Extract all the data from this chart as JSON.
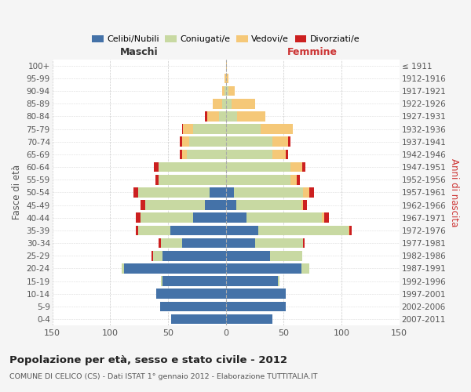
{
  "age_groups": [
    "0-4",
    "5-9",
    "10-14",
    "15-19",
    "20-24",
    "25-29",
    "30-34",
    "35-39",
    "40-44",
    "45-49",
    "50-54",
    "55-59",
    "60-64",
    "65-69",
    "70-74",
    "75-79",
    "80-84",
    "85-89",
    "90-94",
    "95-99",
    "100+"
  ],
  "birth_years": [
    "2007-2011",
    "2002-2006",
    "1997-2001",
    "1992-1996",
    "1987-1991",
    "1982-1986",
    "1977-1981",
    "1972-1976",
    "1967-1971",
    "1962-1966",
    "1957-1961",
    "1952-1956",
    "1947-1951",
    "1942-1946",
    "1937-1941",
    "1932-1936",
    "1927-1931",
    "1922-1926",
    "1917-1921",
    "1912-1916",
    "≤ 1911"
  ],
  "maschi": {
    "celibi": [
      47,
      57,
      60,
      55,
      88,
      55,
      38,
      48,
      28,
      18,
      14,
      0,
      0,
      0,
      0,
      0,
      0,
      0,
      0,
      0,
      0
    ],
    "coniugati": [
      0,
      0,
      0,
      1,
      2,
      8,
      18,
      28,
      46,
      52,
      62,
      58,
      58,
      34,
      32,
      28,
      6,
      3,
      1,
      0,
      0
    ],
    "vedovi": [
      0,
      0,
      0,
      0,
      0,
      0,
      0,
      0,
      0,
      0,
      0,
      0,
      0,
      4,
      6,
      9,
      10,
      8,
      2,
      1,
      0
    ],
    "divorziati": [
      0,
      0,
      0,
      0,
      0,
      1,
      2,
      2,
      4,
      4,
      4,
      3,
      4,
      2,
      2,
      1,
      2,
      0,
      0,
      0,
      0
    ]
  },
  "femmine": {
    "nubili": [
      40,
      52,
      52,
      45,
      65,
      38,
      25,
      28,
      18,
      9,
      7,
      0,
      0,
      0,
      0,
      0,
      0,
      0,
      0,
      0,
      0
    ],
    "coniugate": [
      0,
      0,
      0,
      1,
      7,
      28,
      42,
      78,
      65,
      56,
      60,
      56,
      56,
      40,
      40,
      30,
      10,
      5,
      2,
      0,
      0
    ],
    "vedove": [
      0,
      0,
      0,
      0,
      0,
      0,
      0,
      1,
      2,
      2,
      5,
      5,
      10,
      12,
      14,
      28,
      24,
      20,
      6,
      2,
      1
    ],
    "divorziate": [
      0,
      0,
      0,
      0,
      0,
      0,
      1,
      2,
      4,
      3,
      4,
      3,
      3,
      2,
      2,
      0,
      0,
      0,
      0,
      0,
      0
    ]
  },
  "colors": {
    "celibi": "#4472a8",
    "coniugati": "#c8d9a2",
    "vedovi": "#f5c878",
    "divorziati": "#cc2020"
  },
  "xlim": 150,
  "title": "Popolazione per età, sesso e stato civile - 2012",
  "subtitle": "COMUNE DI CELICO (CS) - Dati ISTAT 1° gennaio 2012 - Elaborazione TUTTITALIA.IT",
  "ylabel_left": "Fasce di età",
  "ylabel_right": "Anni di nascita",
  "header_maschi": "Maschi",
  "header_femmine": "Femmine",
  "legend_labels": [
    "Celibi/Nubili",
    "Coniugati/e",
    "Vedovi/e",
    "Divorziati/e"
  ],
  "bg_color": "#f5f5f5",
  "plot_bg": "#ffffff"
}
